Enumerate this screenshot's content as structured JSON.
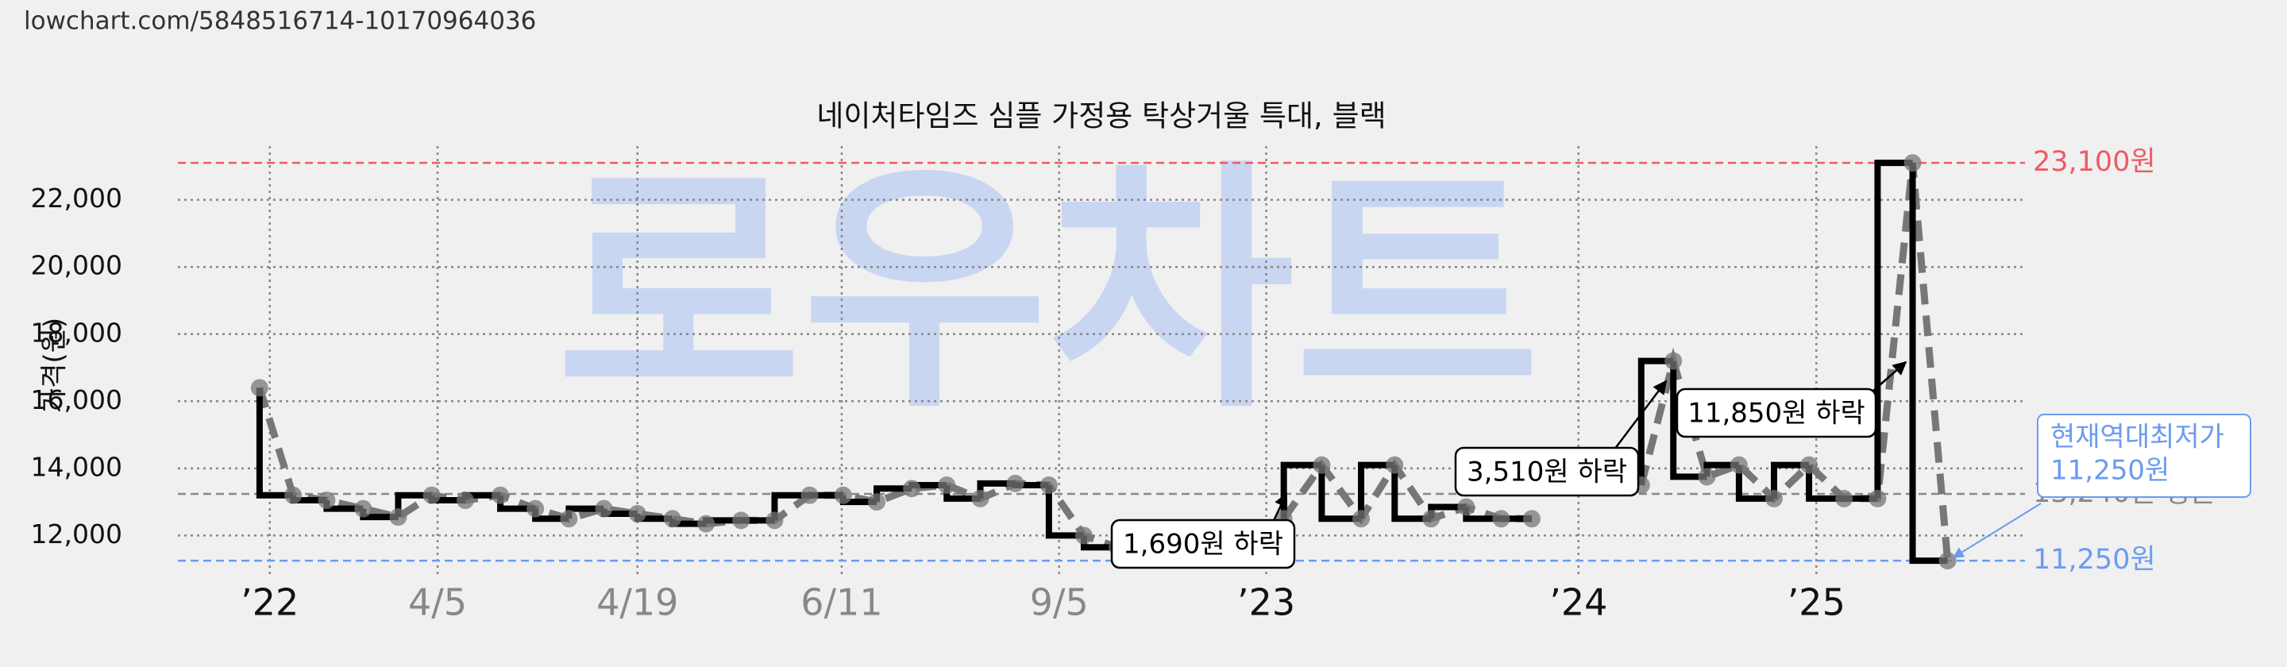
{
  "url": "lowchart.com/5848516714-10170964036",
  "chart_data": {
    "type": "line",
    "title": "네이처타임즈 심플 가정용 탁상거울 특대, 블랙",
    "y_label": "가격(원)",
    "watermark": "로우차트",
    "x": [
      5.6,
      7.9,
      10.2,
      12.7,
      15.1,
      17.4,
      19.7,
      22.1,
      24.5,
      26.8,
      29.2,
      31.5,
      33.9,
      36.2,
      38.6,
      40.9,
      43.3,
      45.6,
      47.9,
      50.3,
      52.7,
      55,
      57.4,
      59.7,
      62.1,
      64.4,
      70,
      75.8,
      78.4,
      81.1,
      83.4,
      85.9,
      88.3,
      90.7,
      92.8,
      96,
      100.3,
      102.5,
      104.8,
      107,
      109.4,
      111.8,
      114.2,
      116.5,
      118.9,
      121.3
    ],
    "values": [
      16400,
      13200,
      13050,
      12800,
      12550,
      13200,
      13050,
      13200,
      12800,
      12500,
      12800,
      12650,
      12500,
      12350,
      12450,
      12450,
      13200,
      13200,
      13000,
      13400,
      13500,
      13100,
      13550,
      13500,
      12000,
      11650,
      null,
      12500,
      14100,
      12500,
      14100,
      12500,
      12850,
      12500,
      12500,
      null,
      13500,
      17200,
      13750,
      14100,
      13100,
      14100,
      13100,
      13100,
      23100,
      11250
    ],
    "step_color": "#000000",
    "line_color": "#777777",
    "xlim": [
      0,
      126.6
    ],
    "xticks": [
      {
        "value": 6.3,
        "label": "’22"
      },
      {
        "value": 17.8,
        "label": "4/5"
      },
      {
        "value": 31.5,
        "label": "4/19"
      },
      {
        "value": 45.5,
        "label": "6/11"
      },
      {
        "value": 60.4,
        "label": "9/5"
      },
      {
        "value": 74.6,
        "label": "’23"
      },
      {
        "value": 96,
        "label": "’24"
      },
      {
        "value": 112.3,
        "label": "’25"
      }
    ],
    "ylim": [
      10780,
      23600
    ],
    "yticks": [
      {
        "value": 12000,
        "label": "12,000"
      },
      {
        "value": 14000,
        "label": "14,000"
      },
      {
        "value": 16000,
        "label": "16,000"
      },
      {
        "value": 18000,
        "label": "18,000"
      },
      {
        "value": 20000,
        "label": "20,000"
      },
      {
        "value": 22000,
        "label": "22,000"
      }
    ],
    "grid": true,
    "reference_lines": [
      {
        "value": 23100,
        "label": "23,100원",
        "color": "#ee5a64"
      },
      {
        "value": 13240,
        "label": "13,240원 평균",
        "color": "#888888"
      },
      {
        "value": 11250,
        "label": "11,250원",
        "color": "#6b9bef"
      }
    ],
    "annotations": [
      {
        "text": "1,690원 하락"
      },
      {
        "text": "3,510원 하락"
      },
      {
        "text": "11,850원 하락"
      }
    ],
    "current_low": {
      "lines": [
        "현재역대최저가",
        "11,250원"
      ],
      "color": "#6b9bef"
    }
  }
}
